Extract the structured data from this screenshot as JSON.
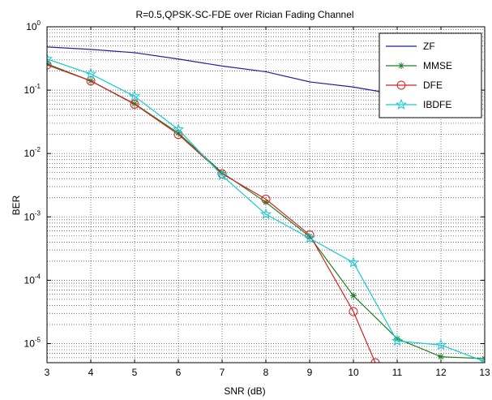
{
  "chart_data": {
    "type": "line",
    "title": "R=0.5,QPSK-SC-FDE over Rician Fading Channel",
    "xlabel": "SNR (dB)",
    "ylabel": "BER",
    "xlim": [
      3,
      13
    ],
    "ylim": [
      5e-06,
      1
    ],
    "yscale": "log",
    "grid": true,
    "legend_position": "top-right",
    "x_ticks": [
      "3",
      "4",
      "5",
      "6",
      "7",
      "8",
      "9",
      "10",
      "11",
      "12",
      "13"
    ],
    "y_ticks": [
      {
        "base": "10",
        "exp": "0"
      },
      {
        "base": "10",
        "exp": "-1"
      },
      {
        "base": "10",
        "exp": "-2"
      },
      {
        "base": "10",
        "exp": "-3"
      },
      {
        "base": "10",
        "exp": "-4"
      },
      {
        "base": "10",
        "exp": "-5"
      }
    ],
    "series": [
      {
        "name": "ZF",
        "color": "#1f1f9f",
        "marker": "none",
        "x": [
          3,
          4,
          5,
          6,
          7,
          8,
          9,
          10,
          11
        ],
        "y": [
          0.48,
          0.44,
          0.39,
          0.31,
          0.24,
          0.195,
          0.135,
          0.112,
          0.085
        ]
      },
      {
        "name": "MMSE",
        "color": "#1e7f1e",
        "marker": "star",
        "x": [
          3,
          4,
          5,
          6,
          7,
          8,
          9,
          10,
          11,
          12,
          13
        ],
        "y": [
          0.26,
          0.14,
          0.061,
          0.021,
          0.005,
          0.0017,
          0.00049,
          5.7e-05,
          1.2e-05,
          6.2e-06,
          5.8e-06
        ]
      },
      {
        "name": "DFE",
        "color": "#d62020",
        "marker": "circle",
        "x": [
          3,
          4,
          5,
          6,
          7,
          8,
          9,
          10,
          10.5
        ],
        "y": [
          0.25,
          0.14,
          0.06,
          0.02,
          0.0048,
          0.0019,
          0.00052,
          3.2e-05,
          5e-06
        ]
      },
      {
        "name": "IBDFE",
        "color": "#17c9cf",
        "marker": "pentagram",
        "x": [
          3,
          4,
          5,
          6,
          7,
          8,
          9,
          10,
          11,
          12,
          13
        ],
        "y": [
          0.31,
          0.18,
          0.08,
          0.024,
          0.0045,
          0.0011,
          0.00046,
          0.00019,
          1.1e-05,
          9.5e-06,
          5.2e-06
        ]
      }
    ]
  }
}
